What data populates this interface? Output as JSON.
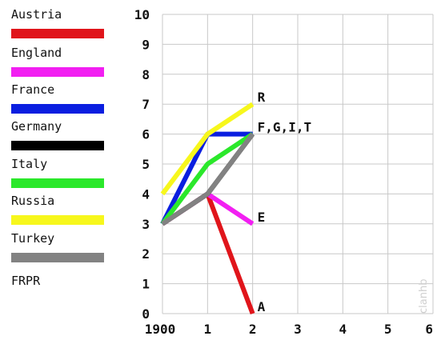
{
  "legend": {
    "title": "FRPR",
    "items": [
      {
        "label": "Austria",
        "color": "#e0151b"
      },
      {
        "label": "England",
        "color": "#f21ff2"
      },
      {
        "label": "France",
        "color": "#0a1ee0"
      },
      {
        "label": "Germany",
        "color": "#000000"
      },
      {
        "label": "Italy",
        "color": "#2be82b"
      },
      {
        "label": "Russia",
        "color": "#f7f71c"
      },
      {
        "label": "Turkey",
        "color": "#828282"
      }
    ]
  },
  "watermark": "clanhb",
  "chart_data": {
    "type": "line",
    "x_ticks": [
      "1900",
      "1",
      "2",
      "3",
      "4",
      "5",
      "6"
    ],
    "y_ticks": [
      "0",
      "1",
      "2",
      "3",
      "4",
      "5",
      "6",
      "7",
      "8",
      "9",
      "10"
    ],
    "xlim": [
      0,
      6
    ],
    "ylim": [
      0,
      10
    ],
    "grid": true,
    "series": [
      {
        "name": "Austria",
        "color": "#e0151b",
        "x": [
          0,
          1,
          2
        ],
        "y": [
          3,
          4,
          0
        ]
      },
      {
        "name": "England",
        "color": "#f21ff2",
        "x": [
          0,
          1,
          2
        ],
        "y": [
          3,
          4,
          3
        ]
      },
      {
        "name": "France",
        "color": "#0a1ee0",
        "x": [
          0,
          1,
          2
        ],
        "y": [
          3,
          6,
          6
        ]
      },
      {
        "name": "Germany",
        "color": "#000000",
        "x": [
          0,
          1,
          2
        ],
        "y": [
          3,
          4,
          6
        ]
      },
      {
        "name": "Italy",
        "color": "#2be82b",
        "x": [
          0,
          1,
          2
        ],
        "y": [
          3,
          5,
          6
        ]
      },
      {
        "name": "Russia",
        "color": "#f7f71c",
        "x": [
          0,
          1,
          2
        ],
        "y": [
          4,
          6,
          7
        ]
      },
      {
        "name": "Turkey",
        "color": "#828282",
        "x": [
          0,
          1,
          2
        ],
        "y": [
          3,
          4,
          6
        ]
      }
    ],
    "end_labels": [
      {
        "text": "R",
        "x": 2,
        "y": 7
      },
      {
        "text": "F,G,I,T",
        "x": 2,
        "y": 6
      },
      {
        "text": "E",
        "x": 2,
        "y": 3
      },
      {
        "text": "A",
        "x": 2,
        "y": 0
      }
    ]
  }
}
